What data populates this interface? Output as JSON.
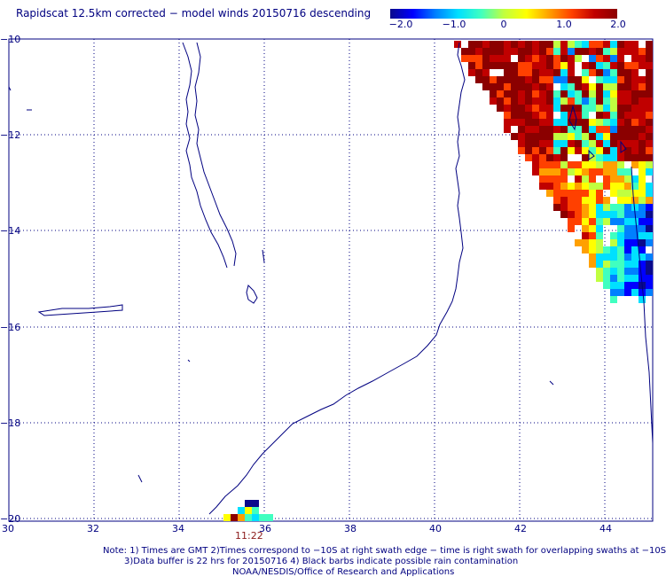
{
  "title": "Rapidscat 12.5km corrected − model winds 20150716 descending",
  "colorbar": {
    "min": -2.0,
    "max": 2.0,
    "ticks": [
      "−2.0",
      "−1.0",
      "0",
      "1.0",
      "2.0"
    ],
    "colors": [
      "#0a0a8c",
      "#0000ff",
      "#0080ff",
      "#00e0ff",
      "#40ffc0",
      "#c0ff40",
      "#ffff00",
      "#ffa000",
      "#ff4000",
      "#c00000",
      "#8b0000"
    ]
  },
  "axes": {
    "lon_ticks": [
      "30",
      "32",
      "34",
      "36",
      "38",
      "40",
      "42",
      "44"
    ],
    "lat_ticks": [
      "−10",
      "−12",
      "−14",
      "−16",
      "−18",
      "−20"
    ]
  },
  "map": {
    "lon_range": [
      30,
      45
    ],
    "lat_range": [
      -20,
      -10
    ],
    "land_color": "#ffffff",
    "coast_color": "#000080",
    "grid_color": "#000080"
  },
  "swath_time": "11:22",
  "notes": [
    "Note: 1) Times are GMT 2)Times correspond to −10S at right swath edge − time is right swath for overlapping swaths at −10S",
    "3)Data buffer is 22 hrs for 20150716 4) Black barbs indicate possible rain contamination",
    "NOAA/NESDIS/Office of Research and Applications"
  ]
}
